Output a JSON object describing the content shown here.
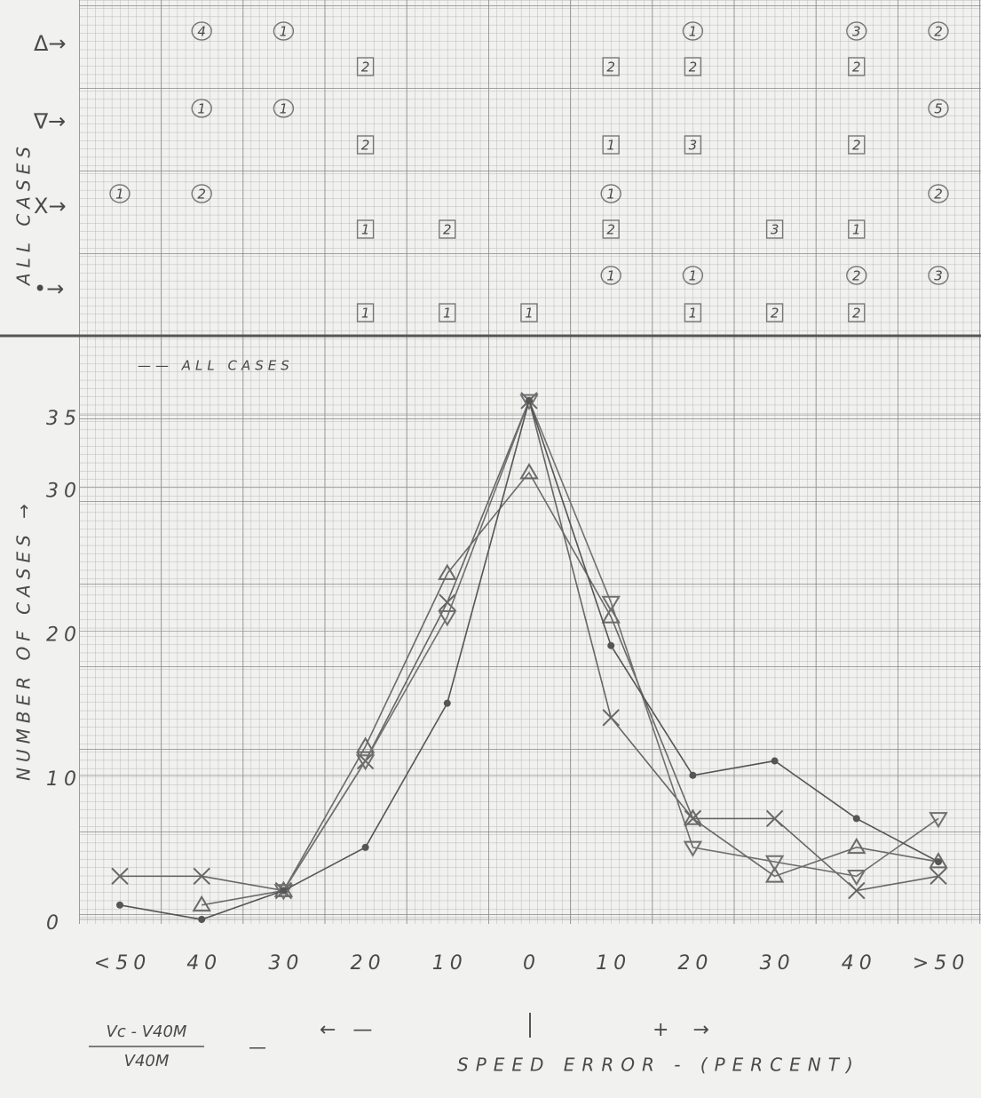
{
  "chart_data": {
    "type": "line",
    "upper_axis_label": "ALL CASES",
    "ylabel": "NUMBER OF CASES →",
    "xlabel": "SPEED ERROR - (PERCENT)",
    "x_formula_numerator": "Vc - V40M",
    "x_formula_denominator": "V40M",
    "formula_dash": "—",
    "minus_label": "← —",
    "plus_label": "+ →",
    "legend_label": "—— ALL CASES",
    "categories": [
      "<50",
      "40",
      "30",
      "20",
      "10",
      "0",
      "10",
      "20",
      "30",
      "40",
      ">50"
    ],
    "ylim": [
      0,
      40
    ],
    "yticks": [
      0,
      10,
      20,
      30,
      35
    ],
    "grid": true,
    "series": [
      {
        "marker": "x",
        "color": "#666666",
        "values": [
          3,
          3,
          2,
          11,
          22,
          36,
          14,
          7,
          7,
          2,
          3
        ]
      },
      {
        "marker": "triangle-up",
        "color": "#6a6a6a",
        "values": [
          null,
          1,
          2,
          12,
          24,
          31,
          21,
          7,
          3,
          5,
          4
        ]
      },
      {
        "marker": "triangle-down",
        "color": "#707070",
        "values": [
          null,
          null,
          2,
          11,
          21,
          36,
          22,
          5,
          4,
          3,
          7
        ]
      },
      {
        "marker": "dot",
        "color": "#555555",
        "values": [
          1,
          0,
          2,
          5,
          15,
          36,
          19,
          10,
          11,
          7,
          4
        ]
      }
    ],
    "count_rows": [
      {
        "label": "Δ→",
        "circled": [
          null,
          4,
          1,
          null,
          null,
          null,
          null,
          1,
          null,
          3,
          2
        ],
        "boxed": [
          null,
          null,
          null,
          2,
          null,
          null,
          2,
          2,
          null,
          2,
          null
        ]
      },
      {
        "label": "∇→",
        "circled": [
          null,
          1,
          1,
          null,
          null,
          null,
          null,
          null,
          null,
          null,
          5
        ],
        "boxed": [
          null,
          null,
          null,
          2,
          null,
          null,
          1,
          3,
          null,
          2,
          null
        ]
      },
      {
        "label": "X→",
        "circled": [
          1,
          2,
          null,
          null,
          null,
          null,
          1,
          null,
          null,
          null,
          2
        ],
        "boxed": [
          null,
          null,
          null,
          1,
          2,
          null,
          2,
          null,
          3,
          1,
          null
        ]
      },
      {
        "label": "•→",
        "circled": [
          null,
          null,
          null,
          null,
          null,
          null,
          1,
          1,
          null,
          2,
          3
        ],
        "boxed": [
          null,
          null,
          null,
          1,
          1,
          1,
          null,
          1,
          2,
          2,
          null
        ]
      }
    ]
  }
}
